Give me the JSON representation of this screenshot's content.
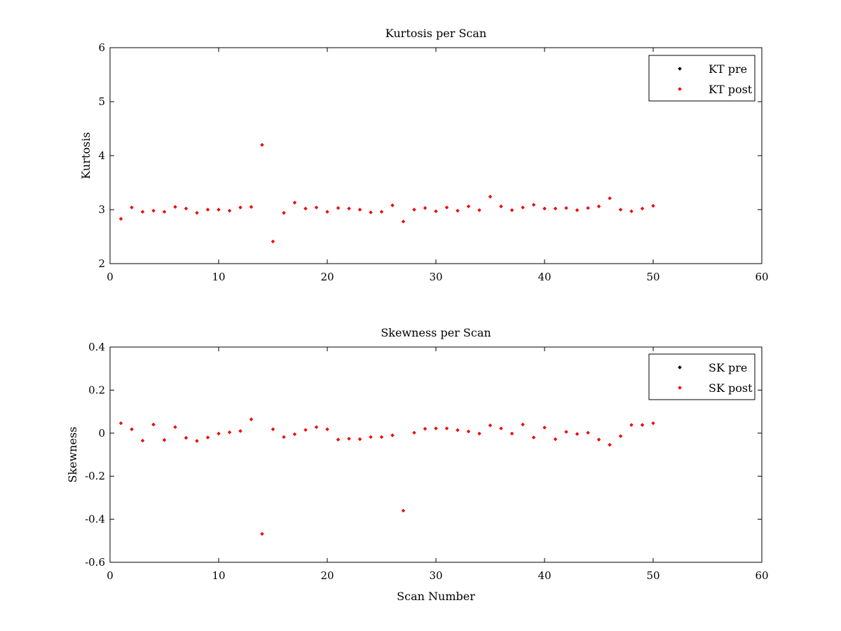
{
  "colors": {
    "background": "#ffffff",
    "axes": "#000000",
    "pre": "#000000",
    "post": "#ff0000"
  },
  "chart_data": [
    {
      "type": "scatter",
      "title": "Kurtosis per Scan",
      "xlabel": "",
      "ylabel": "Kurtosis",
      "xlim": [
        0,
        60
      ],
      "ylim": [
        2,
        6
      ],
      "xticks": [
        0,
        10,
        20,
        30,
        40,
        50,
        60
      ],
      "yticks": [
        2,
        3,
        4,
        5,
        6
      ],
      "xtick_labels": [
        "0",
        "10",
        "20",
        "30",
        "40",
        "50",
        "60"
      ],
      "ytick_labels": [
        "2",
        "3",
        "4",
        "5",
        "6"
      ],
      "legend_position": "top-right",
      "grid": false,
      "x": [
        1,
        2,
        3,
        4,
        5,
        6,
        7,
        8,
        9,
        10,
        11,
        12,
        13,
        14,
        15,
        16,
        17,
        18,
        19,
        20,
        21,
        22,
        23,
        24,
        25,
        26,
        27,
        28,
        29,
        30,
        31,
        32,
        33,
        34,
        35,
        36,
        37,
        38,
        39,
        40,
        41,
        42,
        43,
        44,
        45,
        46,
        47,
        48,
        49,
        50
      ],
      "series": [
        {
          "name": "KT pre",
          "color": "#000000",
          "values": [
            2.83,
            3.04,
            2.96,
            2.98,
            2.96,
            3.05,
            3.02,
            2.94,
            3.0,
            3.0,
            2.98,
            3.04,
            3.05,
            4.2,
            2.41,
            2.94,
            3.13,
            3.02,
            3.04,
            2.96,
            3.03,
            3.02,
            3.0,
            2.95,
            2.96,
            3.08,
            2.78,
            3.0,
            3.03,
            2.97,
            3.04,
            2.98,
            3.06,
            2.99,
            3.24,
            3.06,
            2.99,
            3.04,
            3.09,
            3.02,
            3.02,
            3.03,
            2.99,
            3.03,
            3.06,
            3.21,
            3.0,
            2.97,
            3.02,
            3.07
          ]
        },
        {
          "name": "KT post",
          "color": "#ff0000",
          "values": [
            2.83,
            3.04,
            2.96,
            2.98,
            2.96,
            3.05,
            3.02,
            2.94,
            3.0,
            3.0,
            2.98,
            3.04,
            3.05,
            4.2,
            2.41,
            2.94,
            3.13,
            3.02,
            3.04,
            2.96,
            3.03,
            3.02,
            3.0,
            2.95,
            2.96,
            3.08,
            2.78,
            3.0,
            3.03,
            2.97,
            3.04,
            2.98,
            3.06,
            2.99,
            3.24,
            3.06,
            2.99,
            3.04,
            3.09,
            3.02,
            3.02,
            3.03,
            2.99,
            3.03,
            3.06,
            3.21,
            3.0,
            2.97,
            3.02,
            3.07
          ]
        }
      ]
    },
    {
      "type": "scatter",
      "title": "Skewness per Scan",
      "xlabel": "Scan Number",
      "ylabel": "Skewness",
      "xlim": [
        0,
        60
      ],
      "ylim": [
        -0.6,
        0.4
      ],
      "xticks": [
        0,
        10,
        20,
        30,
        40,
        50,
        60
      ],
      "yticks": [
        -0.6,
        -0.4,
        -0.2,
        0,
        0.2,
        0.4
      ],
      "xtick_labels": [
        "0",
        "10",
        "20",
        "30",
        "40",
        "50",
        "60"
      ],
      "ytick_labels": [
        "-0.6",
        "-0.4",
        "-0.2",
        "0",
        "0.2",
        "0.4"
      ],
      "legend_position": "top-right",
      "grid": false,
      "x": [
        1,
        2,
        3,
        4,
        5,
        6,
        7,
        8,
        9,
        10,
        11,
        12,
        13,
        14,
        15,
        16,
        17,
        18,
        19,
        20,
        21,
        22,
        23,
        24,
        25,
        26,
        27,
        28,
        29,
        30,
        31,
        32,
        33,
        34,
        35,
        36,
        37,
        38,
        39,
        40,
        41,
        42,
        43,
        44,
        45,
        46,
        47,
        48,
        49,
        50
      ],
      "series": [
        {
          "name": "SK pre",
          "color": "#000000",
          "values": [
            0.046,
            0.018,
            -0.035,
            0.04,
            -0.032,
            0.028,
            -0.022,
            -0.036,
            -0.02,
            -0.002,
            0.004,
            0.01,
            0.064,
            -0.468,
            0.018,
            -0.018,
            -0.005,
            0.015,
            0.028,
            0.018,
            -0.03,
            -0.026,
            -0.028,
            -0.018,
            -0.018,
            -0.01,
            -0.36,
            0.002,
            0.02,
            0.022,
            0.022,
            0.014,
            0.008,
            -0.002,
            0.036,
            0.022,
            -0.002,
            0.04,
            -0.02,
            0.026,
            -0.028,
            0.006,
            -0.004,
            0.002,
            -0.03,
            -0.054,
            -0.014,
            0.038,
            0.038,
            0.046
          ]
        },
        {
          "name": "SK post",
          "color": "#ff0000",
          "values": [
            0.046,
            0.018,
            -0.035,
            0.04,
            -0.032,
            0.028,
            -0.022,
            -0.036,
            -0.02,
            -0.002,
            0.004,
            0.01,
            0.064,
            -0.468,
            0.018,
            -0.018,
            -0.005,
            0.015,
            0.028,
            0.018,
            -0.03,
            -0.026,
            -0.028,
            -0.018,
            -0.018,
            -0.01,
            -0.36,
            0.002,
            0.02,
            0.022,
            0.022,
            0.014,
            0.008,
            -0.002,
            0.036,
            0.022,
            -0.002,
            0.04,
            -0.02,
            0.026,
            -0.028,
            0.006,
            -0.004,
            0.002,
            -0.03,
            -0.054,
            -0.014,
            0.038,
            0.038,
            0.046
          ]
        }
      ]
    }
  ]
}
